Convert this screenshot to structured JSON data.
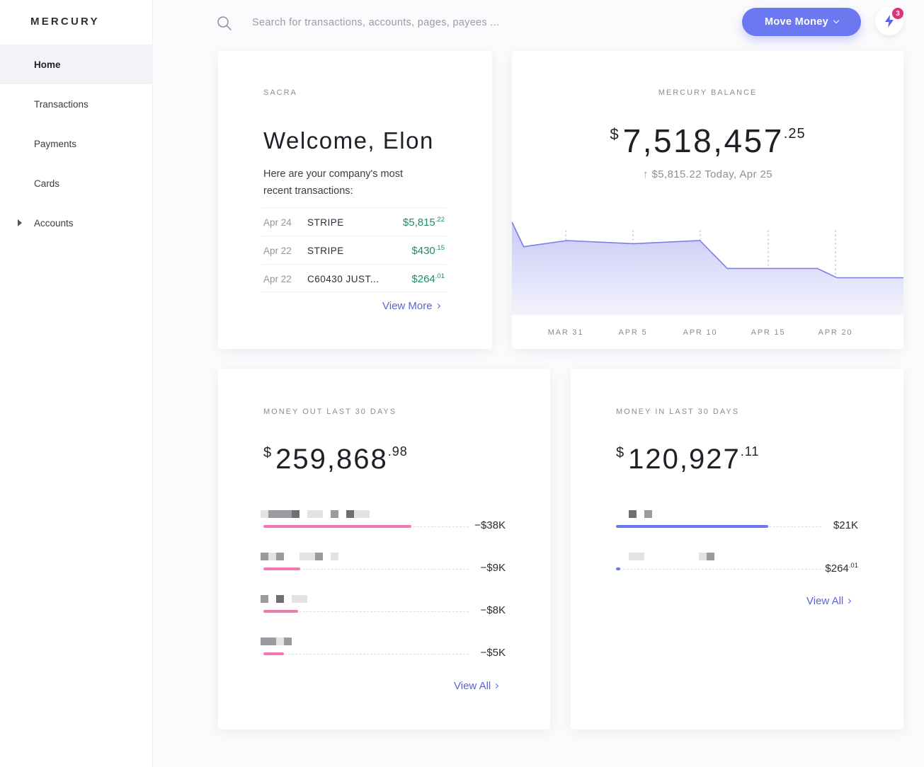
{
  "app": {
    "logo": "MERCURY"
  },
  "sidebar": {
    "items": [
      {
        "label": "Home",
        "active": true
      },
      {
        "label": "Transactions"
      },
      {
        "label": "Payments"
      },
      {
        "label": "Cards"
      },
      {
        "label": "Accounts",
        "expandable": true
      }
    ]
  },
  "header": {
    "search_placeholder": "Search for transactions, accounts, pages, payees ...",
    "move_money_label": "Move Money",
    "notification_count": "3"
  },
  "welcome_card": {
    "label": "SACRA",
    "title": "Welcome, Elon",
    "subtitle": "Here are your company's most recent transactions:",
    "transactions": [
      {
        "date": "Apr 24",
        "payee": "STRIPE",
        "amount": "$5,815",
        "cents": ".22"
      },
      {
        "date": "Apr 22",
        "payee": "STRIPE",
        "amount": "$430",
        "cents": ".15"
      },
      {
        "date": "Apr 22",
        "payee": "C60430 JUST...",
        "amount": "$264",
        "cents": ".01"
      }
    ],
    "view_more": "View More"
  },
  "balance_card": {
    "label": "MERCURY BALANCE",
    "currency": "$",
    "amount": "7,518,457",
    "cents": ".25",
    "change_arrow": "↑",
    "change_text": "$5,815.22 Today, Apr 25",
    "chart_data": {
      "type": "area",
      "x": [
        "Mar 27",
        "Mar 28",
        "Mar 31",
        "Apr 5",
        "Apr 10",
        "Apr 12",
        "Apr 15",
        "Apr 18",
        "Apr 20",
        "Apr 23",
        "Apr 25"
      ],
      "values": [
        7.7,
        7.62,
        7.64,
        7.63,
        7.64,
        7.55,
        7.55,
        7.55,
        7.52,
        7.52,
        7.52
      ],
      "x_ticks": [
        "MAR 31",
        "APR 5",
        "APR 10",
        "APR 15",
        "APR 20"
      ],
      "colors": {
        "line": "#7a7ee8",
        "fill_top": "#c9c9f7",
        "fill_bottom": "#f3f3fd"
      }
    }
  },
  "money_out": {
    "label": "MONEY OUT LAST 30 DAYS",
    "currency": "$",
    "amount": "259,868",
    "cents": ".98",
    "rows": [
      {
        "value": "−$38K",
        "fraction": 0.72
      },
      {
        "value": "−$9K",
        "fraction": 0.18
      },
      {
        "value": "−$8K",
        "fraction": 0.17
      },
      {
        "value": "−$5K",
        "fraction": 0.1
      }
    ],
    "bar_color": "#f27ab3",
    "view_all": "View All"
  },
  "money_in": {
    "label": "MONEY IN LAST 30 DAYS",
    "currency": "$",
    "amount": "120,927",
    "cents": ".11",
    "rows": [
      {
        "value": "$21K",
        "fraction": 0.74
      },
      {
        "value": "$264",
        "cents": ".01",
        "fraction": 0.02
      }
    ],
    "bar_color": "#6b78f0",
    "view_all": "View All"
  }
}
